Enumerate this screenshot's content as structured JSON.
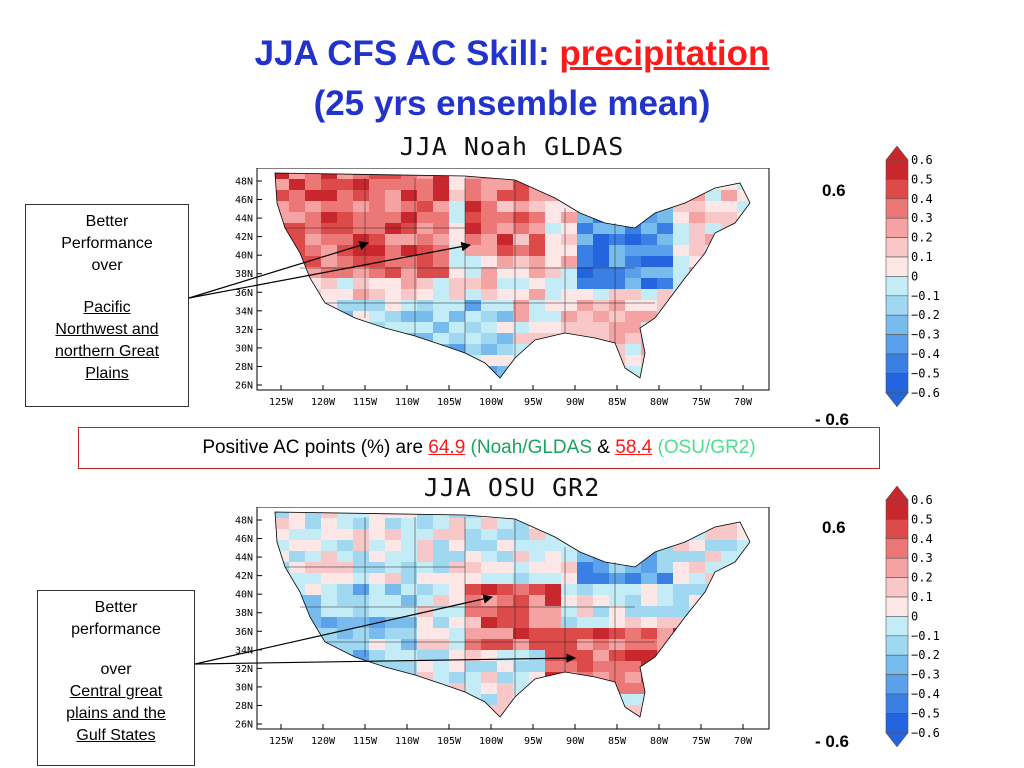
{
  "slide": {
    "title_line1_prefix": "JJA CFS AC Skill: ",
    "title_line1_highlight": "precipitation",
    "title_line2": "(25 yrs ensemble mean)"
  },
  "map_top": {
    "title": "JJA Noah GLDAS",
    "lat_labels": [
      "48N",
      "46N",
      "44N",
      "42N",
      "40N",
      "38N",
      "36N",
      "34N",
      "32N",
      "30N",
      "28N",
      "26N"
    ],
    "lon_labels": [
      "125W",
      "120W",
      "115W",
      "110W",
      "105W",
      "100W",
      "95W",
      "90W",
      "85W",
      "80W",
      "75W",
      "70W"
    ]
  },
  "map_bottom": {
    "title": "JJA OSU GR2",
    "lat_labels": [
      "48N",
      "46N",
      "44N",
      "42N",
      "40N",
      "38N",
      "36N",
      "34N",
      "32N",
      "30N",
      "28N",
      "26N"
    ],
    "lon_labels": [
      "125W",
      "120W",
      "115W",
      "110W",
      "105W",
      "100W",
      "95W",
      "90W",
      "85W",
      "80W",
      "75W",
      "70W"
    ]
  },
  "colorbar": {
    "labels": [
      "0.6",
      "0.5",
      "0.4",
      "0.3",
      "0.2",
      "0.1",
      "0",
      "−0.1",
      "−0.2",
      "−0.3",
      "−0.4",
      "−0.5",
      "−0.6"
    ],
    "colors": [
      "#c8282d",
      "#dc4a4a",
      "#ec7777",
      "#f4a2a2",
      "#f8c8c8",
      "#fde6e6",
      "#c4ecf6",
      "#a0d8f2",
      "#78bcee",
      "#5aa0ea",
      "#3a80e4",
      "#2464de"
    ],
    "top_label": "0.6",
    "bottom_label": "- 0.6"
  },
  "callout_top": {
    "line1": "Better",
    "line2": "Performance",
    "line3": "over",
    "u1": "Pacific",
    "u2": "Northwest and",
    "u3": "northern Great",
    "u4": "Plains"
  },
  "callout_bottom": {
    "line1": "Better",
    "line2": "performance",
    "line3": "over",
    "u1": "Central great",
    "u2": "plains and the",
    "u3": "Gulf States"
  },
  "positive_box": {
    "prefix": "Positive AC points (%)  are  ",
    "value1": "64.9",
    "source1": " (Noah/GLDAS",
    "amp": " & ",
    "value2": "58.4",
    "source2": " (OSU/GR2)"
  }
}
